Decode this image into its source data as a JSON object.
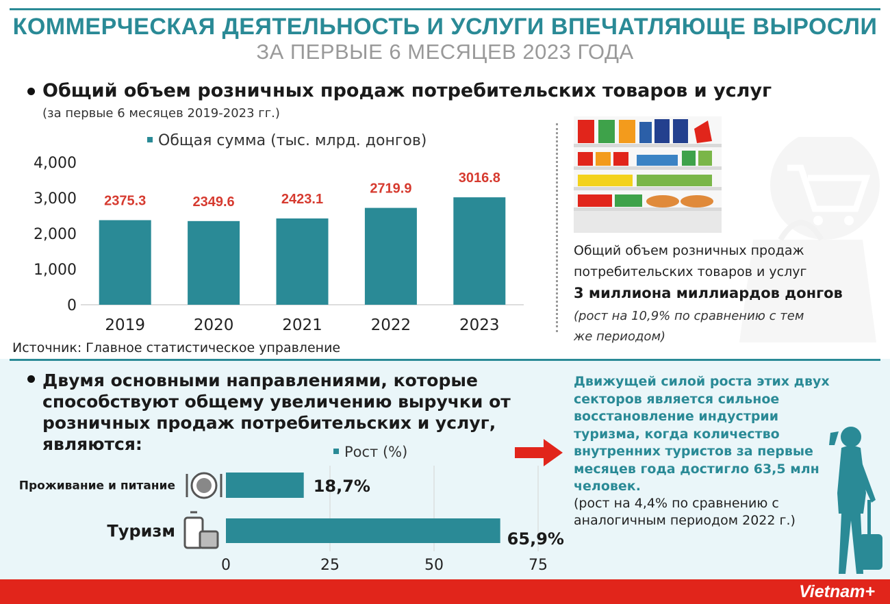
{
  "header": {
    "title_line1": "КОММЕРЧЕСКАЯ ДЕЯТЕЛЬНОСТЬ И УСЛУГИ ВПЕЧАТЛЯЮЩЕ ВЫРОСЛИ",
    "title_line2": "ЗА ПЕРВЫЕ 6 МЕСЯЦЕВ 2023 ГОДА"
  },
  "section1": {
    "heading": "Общий объем розничных продаж потребительских товаров и услуг",
    "subheading": "(за первые 6 месяцев 2019-2023 гг.)",
    "source": "Источник: Главное статистическое управление",
    "summary_line1": "Общий объем розничных продаж",
    "summary_line2": "потребительских товаров и услуг",
    "summary_bold": "3 миллиона миллиардов донгов",
    "summary_italic_line1": "(рост на 10,9% по сравнению с тем",
    "summary_italic_line2": "же периодом)"
  },
  "section2": {
    "heading": "Двумя основными направлениями, которые способствуют общему увеличению выручки от розничных продаж потребительских и услуг, являются:",
    "teal_paragraph": "Движущей силой роста этих двух секторов является сильное восстановление индустрии туризма, когда количество внутренних туристов за первые месяцев года достигло 63,5 млн человек.",
    "black_paragraph": "(рост на 4,4% по сравнению с аналогичным периодом 2022 г.)"
  },
  "footer": {
    "brand": "Vietnam+"
  },
  "colors": {
    "teal": "#2a8a96",
    "red": "#e1251b",
    "value_red": "#d63a2f"
  },
  "chart_data": [
    {
      "type": "bar",
      "title": "",
      "legend": "Общая сумма (тыс. млрд. донгов)",
      "legend_position": "top",
      "categories": [
        "2019",
        "2020",
        "2021",
        "2022",
        "2023"
      ],
      "values": [
        2375.3,
        2349.6,
        2423.1,
        2719.9,
        3016.8
      ],
      "value_labels": [
        "2375.3",
        "2349.6",
        "2423.1",
        "2719.9",
        "3016.8"
      ],
      "ylim": [
        0,
        4000
      ],
      "yticks": [
        0,
        1000,
        2000,
        3000,
        4000
      ],
      "ytick_labels": [
        "0",
        "1,000",
        "2,000",
        "3,000",
        "4,000"
      ],
      "grid": false
    },
    {
      "type": "bar",
      "orientation": "horizontal",
      "legend": "Рост (%)",
      "legend_position": "top",
      "categories": [
        "Проживание и питание",
        "Туризм"
      ],
      "values": [
        18.7,
        65.9
      ],
      "value_labels": [
        "18,7%",
        "65,9%"
      ],
      "xlim": [
        0,
        75
      ],
      "xticks": [
        0,
        25,
        50,
        75
      ],
      "xtick_labels": [
        "0",
        "25",
        "50",
        "75"
      ],
      "grid": true
    }
  ]
}
